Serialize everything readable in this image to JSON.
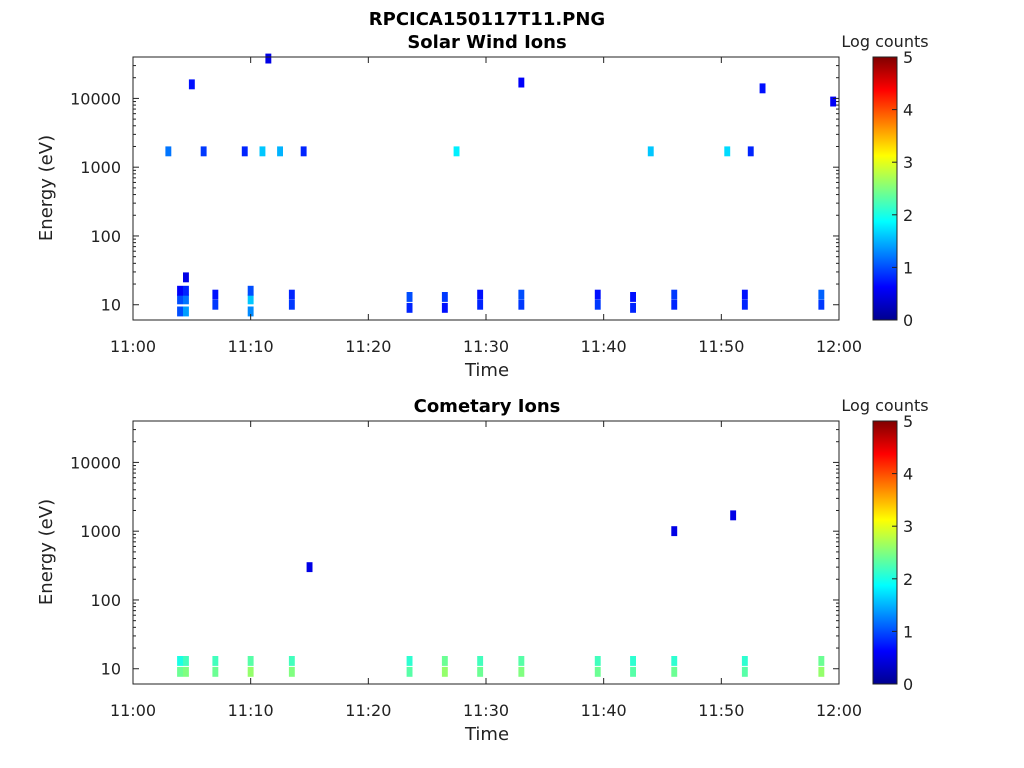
{
  "figure": {
    "title": "RPCICA150117T11.PNG"
  },
  "colorbar": {
    "label": "Log counts",
    "ticks": [
      "0",
      "1",
      "2",
      "3",
      "4",
      "5"
    ],
    "range": [
      0,
      5
    ],
    "colormap": "jet"
  },
  "chart_data": [
    {
      "type": "heatmap",
      "title": "Solar Wind Ions",
      "xlabel": "Time",
      "ylabel": "Energy (eV)",
      "x_ticks": [
        "11:00",
        "11:10",
        "11:20",
        "11:30",
        "11:40",
        "11:50",
        "12:00"
      ],
      "x_range": [
        "11:00",
        "12:00"
      ],
      "y_ticks": [
        "10",
        "100",
        "1000",
        "10000"
      ],
      "y_scale": "log",
      "y_range": [
        6,
        40000
      ],
      "z_label": "Log counts",
      "z_range": [
        0,
        5
      ],
      "cells": [
        [
          "11:04:00",
          8,
          1.0
        ],
        [
          "11:04:00",
          12,
          1.0
        ],
        [
          "11:04:00",
          16,
          0.6
        ],
        [
          "11:04:30",
          8,
          1.4
        ],
        [
          "11:04:30",
          12,
          1.2
        ],
        [
          "11:04:30",
          16,
          0.8
        ],
        [
          "11:04:30",
          25,
          0.5
        ],
        [
          "11:07:00",
          10,
          0.9
        ],
        [
          "11:07:00",
          14,
          0.7
        ],
        [
          "11:10:00",
          8,
          1.3
        ],
        [
          "11:10:00",
          12,
          1.6
        ],
        [
          "11:10:00",
          16,
          1.0
        ],
        [
          "11:13:30",
          10,
          0.9
        ],
        [
          "11:13:30",
          14,
          0.8
        ],
        [
          "11:23:30",
          9,
          0.8
        ],
        [
          "11:23:30",
          13,
          1.0
        ],
        [
          "11:26:30",
          9,
          0.7
        ],
        [
          "11:26:30",
          13,
          0.9
        ],
        [
          "11:29:30",
          10,
          0.8
        ],
        [
          "11:29:30",
          14,
          0.7
        ],
        [
          "11:33:00",
          10,
          0.9
        ],
        [
          "11:33:00",
          14,
          1.0
        ],
        [
          "11:39:30",
          10,
          0.9
        ],
        [
          "11:39:30",
          14,
          0.7
        ],
        [
          "11:42:30",
          9,
          0.8
        ],
        [
          "11:42:30",
          13,
          0.7
        ],
        [
          "11:46:00",
          10,
          0.8
        ],
        [
          "11:46:00",
          14,
          0.9
        ],
        [
          "11:52:00",
          10,
          0.8
        ],
        [
          "11:52:00",
          14,
          0.7
        ],
        [
          "11:58:30",
          10,
          0.9
        ],
        [
          "11:58:30",
          14,
          1.1
        ],
        [
          "11:03:00",
          1700,
          1.2
        ],
        [
          "11:06:00",
          1700,
          0.9
        ],
        [
          "11:09:30",
          1700,
          0.8
        ],
        [
          "11:11:00",
          1700,
          1.6
        ],
        [
          "11:12:30",
          1700,
          1.5
        ],
        [
          "11:14:30",
          1700,
          0.8
        ],
        [
          "11:27:30",
          1700,
          1.8
        ],
        [
          "11:44:00",
          1700,
          1.6
        ],
        [
          "11:50:30",
          1700,
          1.7
        ],
        [
          "11:52:30",
          1700,
          0.8
        ],
        [
          "11:05:00",
          16000,
          0.7
        ],
        [
          "11:11:30",
          38000,
          0.5
        ],
        [
          "11:33:00",
          17000,
          0.6
        ],
        [
          "11:53:30",
          14000,
          0.7
        ],
        [
          "11:59:30",
          9000,
          0.6
        ]
      ]
    },
    {
      "type": "heatmap",
      "title": "Cometary Ions",
      "xlabel": "Time",
      "ylabel": "Energy (eV)",
      "x_ticks": [
        "11:00",
        "11:10",
        "11:20",
        "11:30",
        "11:40",
        "11:50",
        "12:00"
      ],
      "x_range": [
        "11:00",
        "12:00"
      ],
      "y_ticks": [
        "10",
        "100",
        "1000",
        "10000"
      ],
      "y_scale": "log",
      "y_range": [
        6,
        40000
      ],
      "z_label": "Log counts",
      "z_range": [
        0,
        5
      ],
      "cells": [
        [
          "11:04:00",
          9,
          2.4
        ],
        [
          "11:04:00",
          13,
          2.0
        ],
        [
          "11:04:30",
          9,
          2.5
        ],
        [
          "11:04:30",
          13,
          2.2
        ],
        [
          "11:07:00",
          9,
          2.4
        ],
        [
          "11:07:00",
          13,
          2.2
        ],
        [
          "11:10:00",
          9,
          2.6
        ],
        [
          "11:10:00",
          13,
          2.3
        ],
        [
          "11:13:30",
          9,
          2.5
        ],
        [
          "11:13:30",
          13,
          2.2
        ],
        [
          "11:23:30",
          9,
          2.3
        ],
        [
          "11:23:30",
          13,
          2.1
        ],
        [
          "11:26:30",
          9,
          2.6
        ],
        [
          "11:26:30",
          13,
          2.4
        ],
        [
          "11:29:30",
          9,
          2.4
        ],
        [
          "11:29:30",
          13,
          2.2
        ],
        [
          "11:33:00",
          9,
          2.5
        ],
        [
          "11:33:00",
          13,
          2.3
        ],
        [
          "11:39:30",
          9,
          2.4
        ],
        [
          "11:39:30",
          13,
          2.2
        ],
        [
          "11:42:30",
          9,
          2.3
        ],
        [
          "11:42:30",
          13,
          2.1
        ],
        [
          "11:46:00",
          9,
          2.4
        ],
        [
          "11:46:00",
          13,
          2.1
        ],
        [
          "11:52:00",
          9,
          2.3
        ],
        [
          "11:52:00",
          13,
          2.1
        ],
        [
          "11:58:30",
          9,
          2.6
        ],
        [
          "11:58:30",
          13,
          2.4
        ],
        [
          "11:46:00",
          1000,
          0.5
        ],
        [
          "11:51:00",
          1700,
          0.5
        ],
        [
          "11:15:00",
          300,
          0.5
        ]
      ]
    }
  ]
}
